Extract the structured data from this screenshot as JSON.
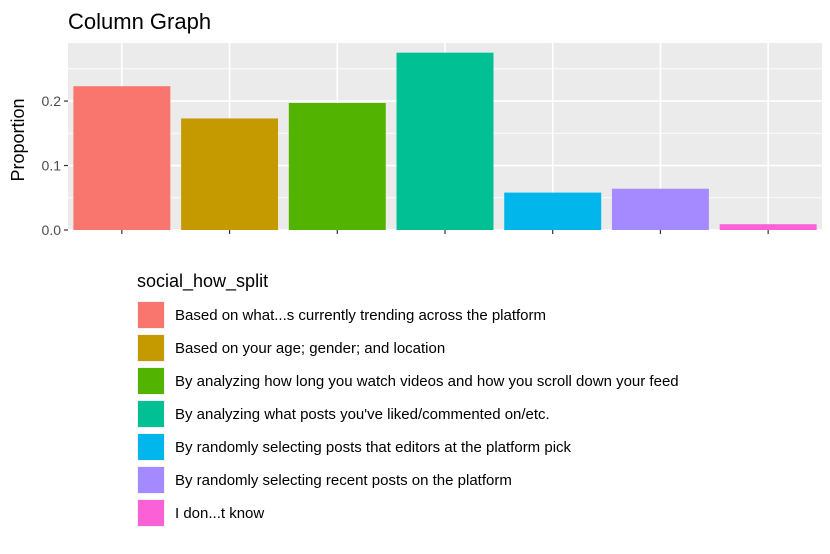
{
  "chart_data": {
    "type": "bar",
    "title": "Column Graph",
    "xlabel": "",
    "ylabel": "Proportion",
    "ylim": [
      0,
      0.29
    ],
    "yticks": [
      0.0,
      0.1,
      0.2
    ],
    "ytick_labels": [
      "0.0",
      "0.1",
      "0.2"
    ],
    "grid": true,
    "legend_position": "bottom",
    "legend_title": "social_how_split",
    "categories": [
      "Based on what...s currently trending across the platform",
      "Based on your age; gender; and location",
      "By analyzing how long you watch videos and how you scroll down your feed",
      "By analyzing what posts you've liked/commented on/etc.",
      "By randomly selecting posts that editors at the platform pick",
      "By randomly selecting recent posts on the platform",
      "I don...t know"
    ],
    "values": [
      0.223,
      0.173,
      0.197,
      0.275,
      0.058,
      0.064,
      0.009
    ],
    "colors": [
      "#F8766D",
      "#C49A00",
      "#53B400",
      "#00C094",
      "#00B6EB",
      "#A58AFF",
      "#FB61D7"
    ]
  }
}
